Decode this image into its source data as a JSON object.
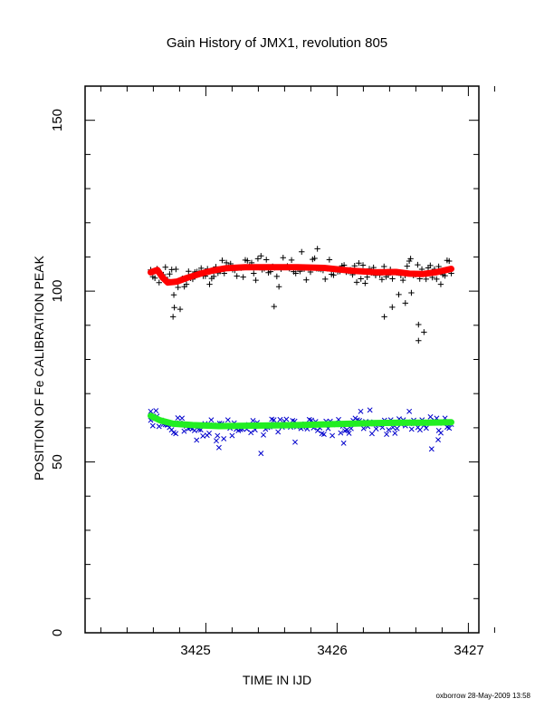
{
  "chart_data": {
    "type": "scatter",
    "title": "Gain History of JMX1, revolution 805",
    "xlabel": "TIME IN IJD",
    "ylabel": "POSITION OF Fe CALIBRATION PEAK",
    "xlim": [
      3424.08,
      3427.08
    ],
    "ylim": [
      0,
      160
    ],
    "x_ticks": [
      3425,
      3426,
      3427
    ],
    "y_ticks": [
      0,
      50,
      100,
      150
    ],
    "grid": false,
    "series": [
      {
        "marker": "+",
        "color": "#000000",
        "x_start": 3424.58,
        "x_end": 3426.87,
        "values": [
          106.2,
          104.2,
          103.8,
          106.5,
          102.5,
          104.8,
          104.8,
          107,
          103.4,
          105,
          106.3,
          98.9,
          106.4,
          101.1,
          94.7,
          103.7,
          101.3,
          102,
          105.8,
          103.8,
          103.5,
          105.6,
          105.7,
          105.5,
          106.7,
          104.4,
          104.4,
          106.5,
          102,
          103.7,
          104.3,
          107.1,
          105.3,
          105.8,
          109,
          105.2,
          108.3,
          106.9,
          108,
          106.3,
          106.1,
          104.4,
          106.9,
          106.8,
          104.1,
          109.1,
          108.9,
          107.2,
          108.3,
          105.2,
          103.2,
          109.5,
          106.9,
          106.3,
          106.6,
          109.2,
          105.4,
          105.7,
          107.2,
          106.9,
          104.3,
          101.3,
          106.5,
          109.8,
          107,
          107.3,
          106.6,
          109.1,
          105.7,
          105.2,
          106.8,
          105.8,
          106.6,
          106.5,
          103.3,
          106.8,
          105.6,
          109.3,
          109.6,
          106.6,
          106.5,
          106.4,
          106.1,
          103.5,
          106.6,
          109.2,
          104.9,
          104.7,
          106.3,
          105.7,
          105.8,
          107.4,
          107.6,
          105.6,
          105.8,
          106.2,
          104.8,
          107.4,
          102.6,
          108.2,
          103.6,
          107.6,
          102.3,
          104.1,
          106.5,
          105.4,
          106.9,
          104.6,
          105.4,
          104.7,
          103.4,
          107.2,
          104.2,
          104.7,
          106.3,
          103.6,
          105.7,
          105.4,
          99,
          104.6,
          103.2,
          104.6,
          107.3,
          108.8,
          99.5,
          104.6,
          104.9,
          107.7,
          103.6,
          106.4,
          88,
          103.5,
          106.8,
          107.5,
          104,
          106.4,
          103.5,
          107.2,
          102,
          104.8,
          104.5,
          109,
          108.8,
          105.2
        ],
        "outliers": [
          {
            "x": 3424.75,
            "y": 92.5
          },
          {
            "x": 3424.76,
            "y": 95.2
          },
          {
            "x": 3425.52,
            "y": 95.5
          },
          {
            "x": 3426.36,
            "y": 92.5
          },
          {
            "x": 3426.62,
            "y": 90.2
          },
          {
            "x": 3426.62,
            "y": 85.5
          },
          {
            "x": 3426.42,
            "y": 95.3
          },
          {
            "x": 3426.52,
            "y": 96.5
          },
          {
            "x": 3425.73,
            "y": 111.5
          },
          {
            "x": 3425.85,
            "y": 112.4
          },
          {
            "x": 3425.42,
            "y": 110.3
          },
          {
            "x": 3426.56,
            "y": 109.5
          }
        ]
      },
      {
        "marker": "x",
        "color": "#0000cc",
        "x_start": 3424.58,
        "x_end": 3426.87,
        "values": [
          62.2,
          60.6,
          62.7,
          63.4,
          60.4,
          62.2,
          61,
          60.9,
          60.8,
          60.1,
          59.4,
          58.6,
          58.3,
          62.9,
          61.4,
          62.8,
          59,
          60.5,
          59.7,
          60,
          59.7,
          59.2,
          56.4,
          59.5,
          59.4,
          57.6,
          61.2,
          57.8,
          58.4,
          62.3,
          60.8,
          60.7,
          57.7,
          61.3,
          61.2,
          56.8,
          60.6,
          62.3,
          59.9,
          57.7,
          61.4,
          59.6,
          59.2,
          59.5,
          59.6,
          60.3,
          59.6,
          60.9,
          58.6,
          62.1,
          59.4,
          61.5,
          60.6,
          60.7,
          57.9,
          59.6,
          60.1,
          60.3,
          62.5,
          62.3,
          61,
          58.8,
          62.4,
          60.2,
          61.9,
          62.5,
          60.9,
          60.2,
          62.1,
          61.9,
          60.3,
          60.6,
          59.8,
          60.2,
          61.1,
          59.7,
          62.4,
          62.2,
          60,
          61.8,
          59.2,
          60,
          58.3,
          58.1,
          61.9,
          59.8,
          61.9,
          57.7,
          61.3,
          60.9,
          62.4,
          58.5,
          60.5,
          59.1,
          59.4,
          58.4,
          59.8,
          62.1,
          62.8,
          62.3,
          62.1,
          61.2,
          59.8,
          61.8,
          60.4,
          61.7,
          58.3,
          61.1,
          59.7,
          60.9,
          61.2,
          60.1,
          62.2,
          58.1,
          59.4,
          62.3,
          60.1,
          58.4,
          59.8,
          62.6,
          61,
          62.3,
          60.6,
          61.7,
          61.2,
          59.6,
          62.2,
          61.3,
          60.1,
          59.4,
          62.3,
          60.8,
          59.9,
          61.6,
          63.2,
          61.7,
          62.1,
          62.8,
          59.2,
          58.5,
          61.3,
          62.8,
          60.2,
          59.9,
          61
        ],
        "outliers": [
          {
            "x": 3424.58,
            "y": 64.8
          },
          {
            "x": 3424.62,
            "y": 65.0
          },
          {
            "x": 3425.08,
            "y": 56.2
          },
          {
            "x": 3425.1,
            "y": 54.2
          },
          {
            "x": 3425.42,
            "y": 52.5
          },
          {
            "x": 3425.68,
            "y": 55.8
          },
          {
            "x": 3426.05,
            "y": 55.5
          },
          {
            "x": 3426.18,
            "y": 64.8
          },
          {
            "x": 3426.25,
            "y": 65.2
          },
          {
            "x": 3426.55,
            "y": 64.8
          },
          {
            "x": 3426.72,
            "y": 53.8
          },
          {
            "x": 3426.77,
            "y": 56.5
          }
        ]
      }
    ],
    "fits": [
      {
        "color": "#ff0000",
        "points": [
          [
            3424.58,
            105.5
          ],
          [
            3424.63,
            106.2
          ],
          [
            3424.67,
            104.0
          ],
          [
            3424.71,
            102.5
          ],
          [
            3424.78,
            102.8
          ],
          [
            3424.85,
            103.8
          ],
          [
            3424.95,
            105.0
          ],
          [
            3425.05,
            106.0
          ],
          [
            3425.15,
            106.7
          ],
          [
            3425.3,
            107.0
          ],
          [
            3425.5,
            107.0
          ],
          [
            3425.7,
            107.0
          ],
          [
            3425.9,
            106.8
          ],
          [
            3426.1,
            106.0
          ],
          [
            3426.3,
            105.5
          ],
          [
            3426.45,
            105.6
          ],
          [
            3426.55,
            105.1
          ],
          [
            3426.65,
            105.0
          ],
          [
            3426.75,
            105.5
          ],
          [
            3426.87,
            106.5
          ]
        ]
      },
      {
        "color": "#22ee22",
        "points": [
          [
            3424.58,
            63.5
          ],
          [
            3424.65,
            62.2
          ],
          [
            3424.75,
            61.2
          ],
          [
            3424.9,
            60.8
          ],
          [
            3425.1,
            60.5
          ],
          [
            3425.3,
            60.6
          ],
          [
            3425.5,
            60.7
          ],
          [
            3425.7,
            60.8
          ],
          [
            3425.9,
            61.0
          ],
          [
            3426.1,
            61.2
          ],
          [
            3426.3,
            61.4
          ],
          [
            3426.5,
            61.5
          ],
          [
            3426.7,
            61.5
          ],
          [
            3426.87,
            61.6
          ]
        ]
      }
    ]
  },
  "footer": {
    "stamp": "oxborrow 28-May-2009 13:58"
  }
}
